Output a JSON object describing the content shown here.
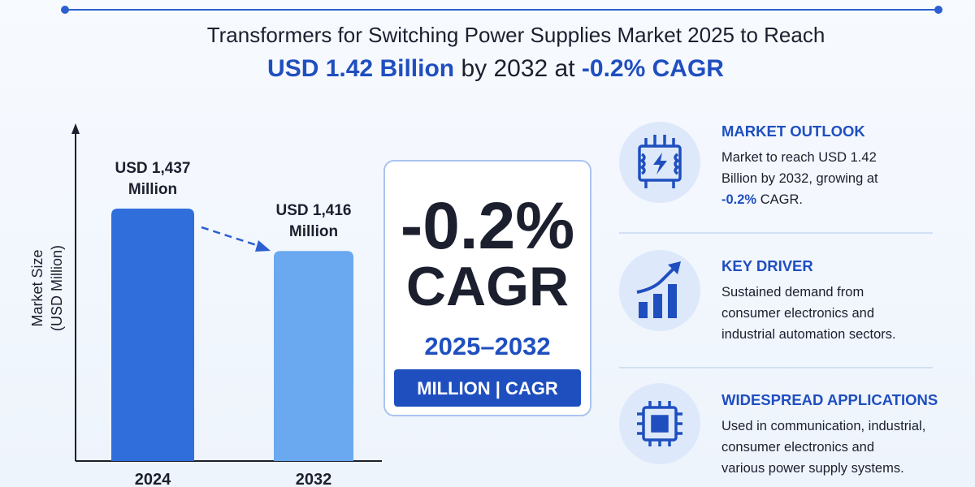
{
  "header": {
    "title_line1": "Transformers for Switching Power Supplies Market 2025 to Reach",
    "title_line2_start": "USD 1.42 Billion",
    "title_line2_middle": " by 2032 at ",
    "title_line2_end": "-0.2% CAGR"
  },
  "chart_data": {
    "type": "bar",
    "categories": [
      "2024",
      "2032"
    ],
    "values": [
      1437,
      1416
    ],
    "value_labels": [
      "USD 1,437 Million",
      "USD 1,416 Million"
    ],
    "colors": [
      "#2f6edb",
      "#6aa8ef"
    ],
    "y_label": [
      "Market Size",
      "(USD Million)"
    ],
    "ylim": [
      1312,
      1478
    ]
  },
  "cagr_box": {
    "value": "-0.2%",
    "label": "CAGR",
    "period": "2025–2032",
    "badge": "MILLION | CAGR"
  },
  "cards": [
    {
      "heading": "MARKET OUTLOOK",
      "body": [
        "Market to reach USD 1.42",
        "Billion by 2032, growing at"
      ],
      "highlight": "-0.2%",
      "tail": " CAGR."
    },
    {
      "heading": "KEY DRIVER",
      "body": [
        "Sustained demand from",
        "consumer electronics and",
        "industrial automation sectors."
      ]
    },
    {
      "heading": "WIDESPREAD APPLICATIONS",
      "body": [
        "Used in communication, industrial,",
        "consumer electronics and",
        "various power supply systems."
      ]
    }
  ]
}
